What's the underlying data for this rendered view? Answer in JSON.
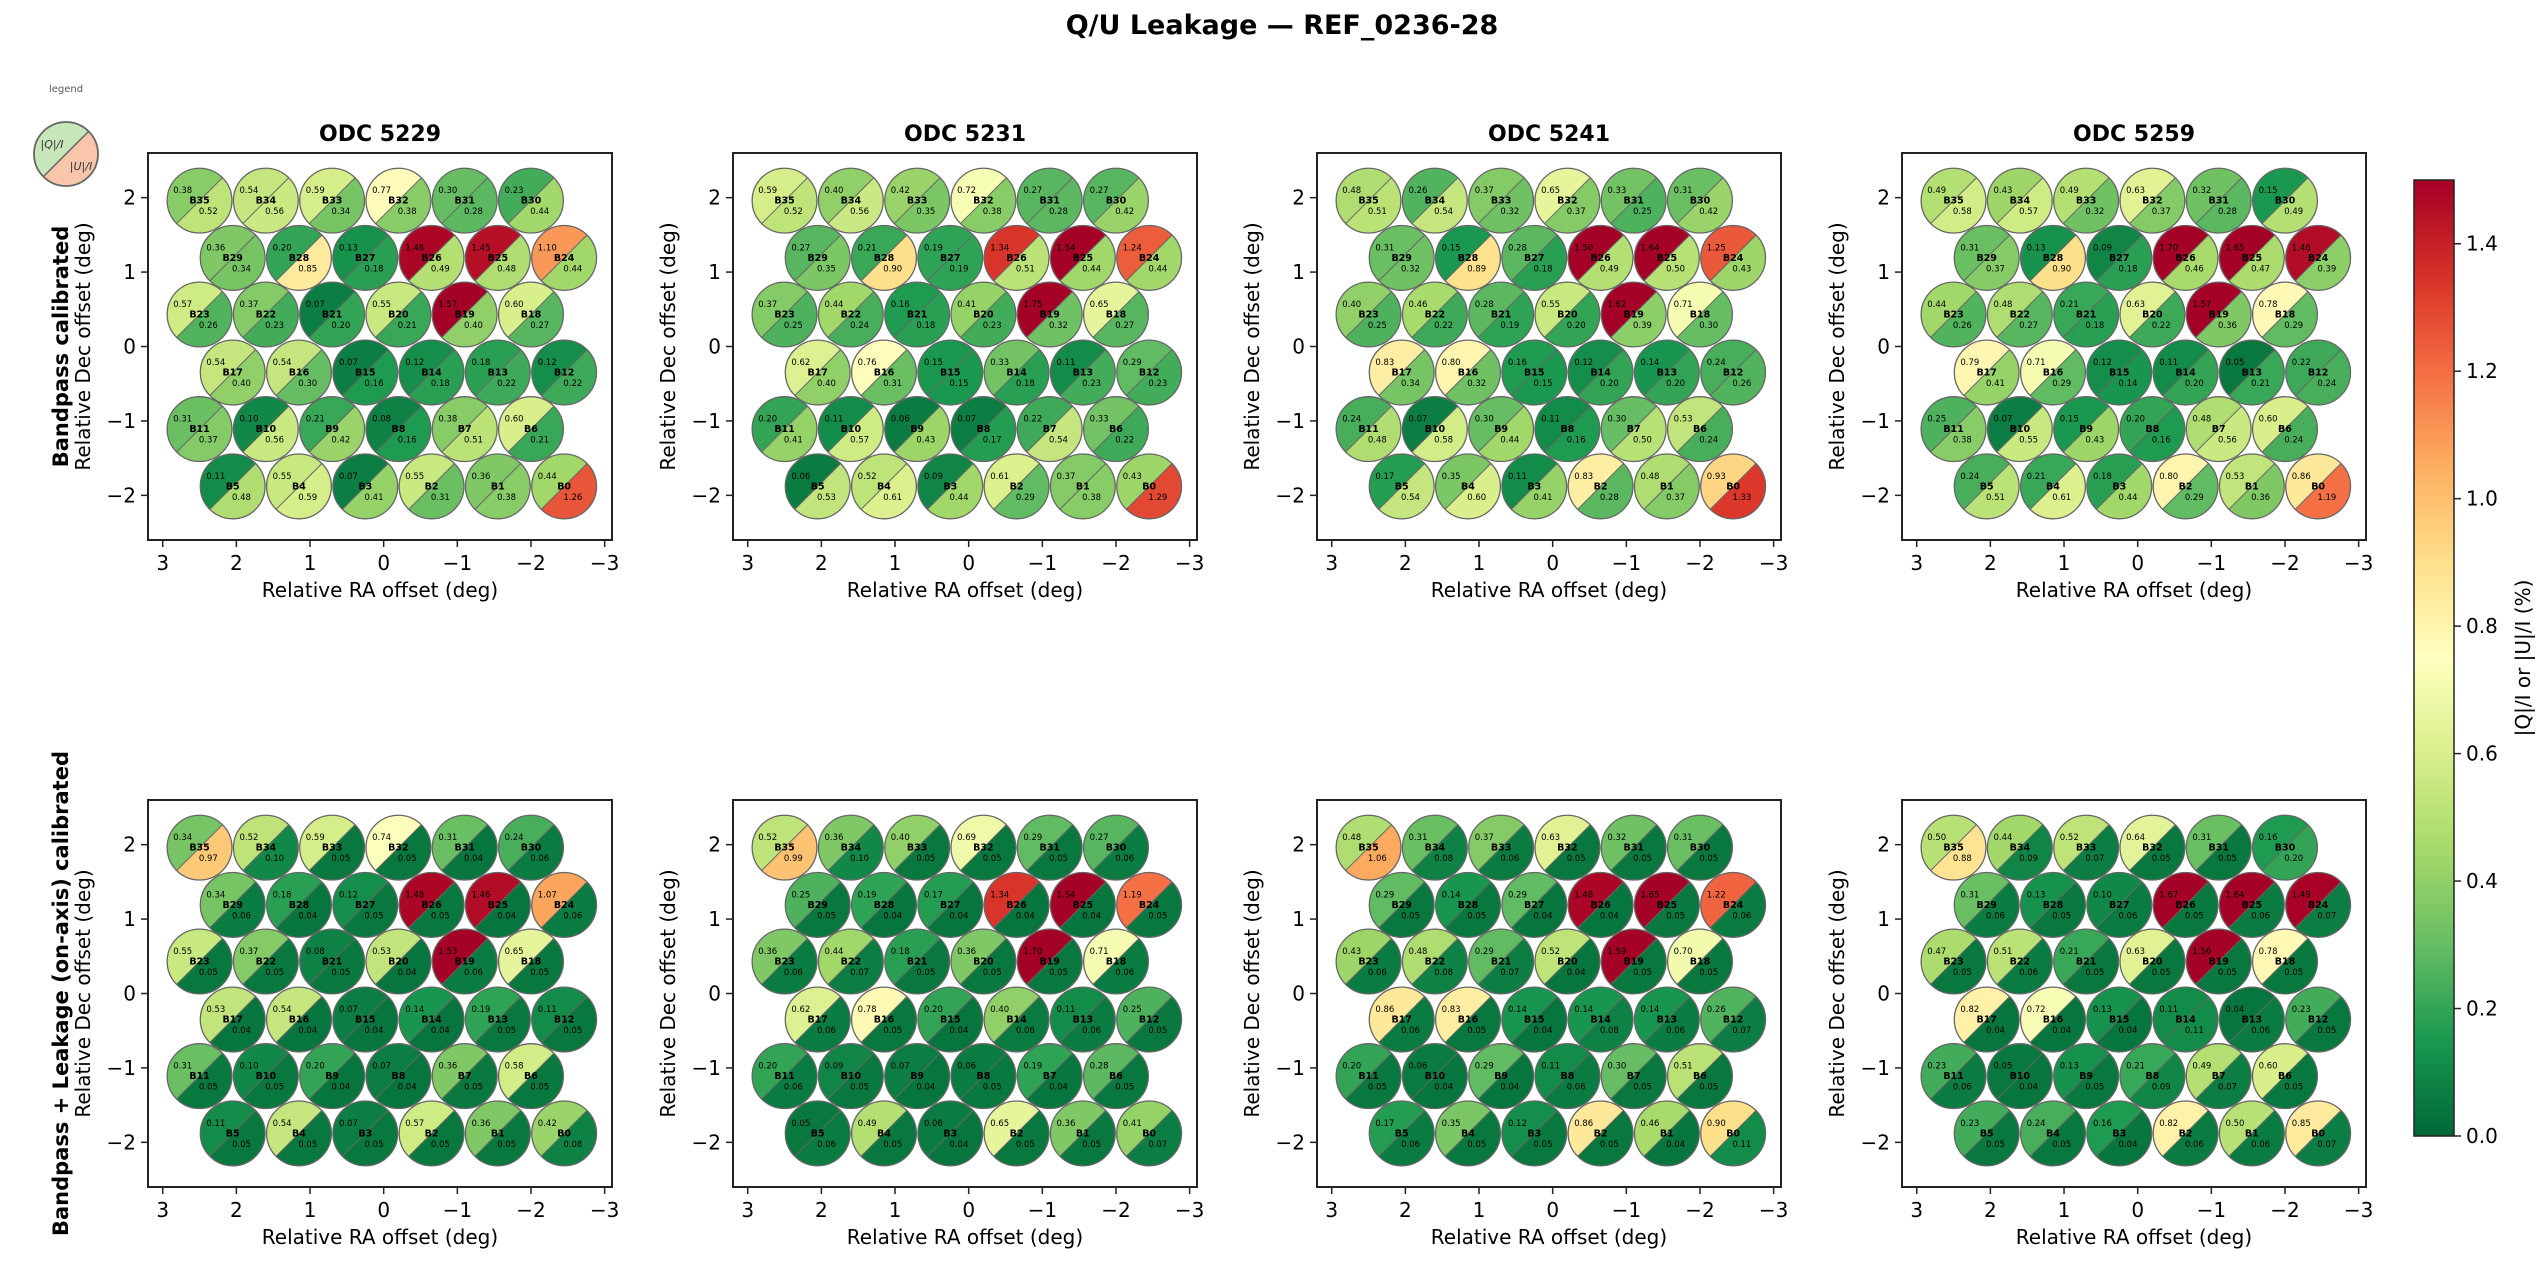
{
  "chart_data": {
    "type": "heatmap",
    "subtype": "split-circle beam map",
    "title": "Q/U Leakage — REF_0236-28",
    "legend": {
      "label": "legend",
      "upper_left": "|Q|/I",
      "lower_right": "|U|/I",
      "placement": "top-left"
    },
    "colorbar": {
      "label": "|Q|/I  or  |U|/I  (%)",
      "range": [
        0,
        1.5
      ],
      "ticks": [
        "0.0",
        "0.2",
        "0.4",
        "0.6",
        "0.8",
        "1.0",
        "1.2",
        "1.4"
      ],
      "colormap": "RdYlGn_r",
      "placement": "right"
    },
    "xlabel": "Relative RA offset (deg)",
    "ylabel": "Relative Dec offset (deg)",
    "xlim": [
      3.2,
      -3.1
    ],
    "ylim": [
      -2.6,
      2.6
    ],
    "xticks": [
      "3",
      "2",
      "1",
      "0",
      "−1",
      "−2",
      "−3"
    ],
    "yticks": [
      "2",
      "1",
      "0",
      "−1",
      "−2"
    ],
    "column_titles": [
      "ODC 5229",
      "ODC 5231",
      "ODC 5241",
      "ODC 5259"
    ],
    "row_titles": [
      "Bandpass calibrated",
      "Bandpass + Leakage (on-axis) calibrated"
    ],
    "beam_layout": [
      [
        "B35",
        "B34",
        "B33",
        "B32",
        "B31",
        "B30"
      ],
      [
        "B29",
        "B28",
        "B27",
        "B26",
        "B25",
        "B24"
      ],
      [
        "B23",
        "B22",
        "B21",
        "B20",
        "B19",
        "B18"
      ],
      [
        "B17",
        "B16",
        "B15",
        "B14",
        "B13",
        "B12"
      ],
      [
        "B11",
        "B10",
        "B9",
        "B8",
        "B7",
        "B6"
      ],
      [
        "B5",
        "B4",
        "B3",
        "B2",
        "B1",
        "B0"
      ]
    ],
    "panels": [
      {
        "row": 0,
        "col": 0,
        "q": [
          [
            0.38,
            0.54,
            0.59,
            0.77,
            0.3,
            0.23
          ],
          [
            0.36,
            0.2,
            0.13,
            1.48,
            1.45,
            1.1
          ],
          [
            0.57,
            0.37,
            0.07,
            0.55,
            1.57,
            0.6
          ],
          [
            0.54,
            0.54,
            0.07,
            0.12,
            0.18,
            0.12
          ],
          [
            0.31,
            0.1,
            0.21,
            0.08,
            0.38,
            0.6
          ],
          [
            0.11,
            0.55,
            0.07,
            0.55,
            0.36,
            0.44
          ]
        ],
        "u": [
          [
            0.52,
            0.56,
            0.34,
            0.38,
            0.28,
            0.44
          ],
          [
            0.34,
            0.85,
            0.18,
            0.49,
            0.48,
            0.44
          ],
          [
            0.26,
            0.23,
            0.2,
            0.21,
            0.4,
            0.27
          ],
          [
            0.4,
            0.3,
            0.16,
            0.18,
            0.22,
            0.22
          ],
          [
            0.37,
            0.56,
            0.42,
            0.16,
            0.51,
            0.21
          ],
          [
            0.48,
            0.59,
            0.41,
            0.31,
            0.38,
            1.26
          ]
        ]
      },
      {
        "row": 0,
        "col": 1,
        "q": [
          [
            0.59,
            0.4,
            0.42,
            0.72,
            0.27,
            0.27
          ],
          [
            0.27,
            0.21,
            0.19,
            1.34,
            1.54,
            1.24
          ],
          [
            0.37,
            0.44,
            0.16,
            0.41,
            1.75,
            0.65
          ],
          [
            0.62,
            0.76,
            0.15,
            0.33,
            0.11,
            0.29
          ],
          [
            0.2,
            0.11,
            0.06,
            0.07,
            0.22,
            0.33
          ],
          [
            0.06,
            0.52,
            0.09,
            0.61,
            0.37,
            0.43
          ]
        ],
        "u": [
          [
            0.52,
            0.56,
            0.35,
            0.38,
            0.28,
            0.42
          ],
          [
            0.35,
            0.9,
            0.19,
            0.51,
            0.44,
            0.44
          ],
          [
            0.25,
            0.24,
            0.18,
            0.23,
            0.32,
            0.27
          ],
          [
            0.4,
            0.31,
            0.15,
            0.18,
            0.23,
            0.23
          ],
          [
            0.41,
            0.57,
            0.43,
            0.17,
            0.54,
            0.22
          ],
          [
            0.53,
            0.61,
            0.44,
            0.29,
            0.38,
            1.29
          ]
        ]
      },
      {
        "row": 0,
        "col": 2,
        "q": [
          [
            0.48,
            0.26,
            0.37,
            0.65,
            0.33,
            0.31
          ],
          [
            0.31,
            0.15,
            0.28,
            1.5,
            1.64,
            1.25
          ],
          [
            0.4,
            0.46,
            0.28,
            0.55,
            1.62,
            0.71
          ],
          [
            0.83,
            0.8,
            0.16,
            0.12,
            0.14,
            0.24
          ],
          [
            0.24,
            0.07,
            0.3,
            0.11,
            0.3,
            0.53
          ],
          [
            0.17,
            0.35,
            0.11,
            0.83,
            0.48,
            0.93
          ]
        ],
        "u": [
          [
            0.51,
            0.54,
            0.32,
            0.37,
            0.25,
            0.42
          ],
          [
            0.32,
            0.89,
            0.18,
            0.49,
            0.5,
            0.43
          ],
          [
            0.25,
            0.22,
            0.19,
            0.2,
            0.39,
            0.3
          ],
          [
            0.34,
            0.32,
            0.15,
            0.2,
            0.2,
            0.26
          ],
          [
            0.48,
            0.58,
            0.44,
            0.16,
            0.5,
            0.24
          ],
          [
            0.54,
            0.6,
            0.41,
            0.28,
            0.37,
            1.33
          ]
        ]
      },
      {
        "row": 0,
        "col": 3,
        "q": [
          [
            0.49,
            0.43,
            0.49,
            0.63,
            0.32,
            0.15
          ],
          [
            0.31,
            0.13,
            0.09,
            1.7,
            1.65,
            1.46
          ],
          [
            0.44,
            0.48,
            0.21,
            0.63,
            1.57,
            0.78
          ],
          [
            0.79,
            0.71,
            0.12,
            0.11,
            0.05,
            0.22
          ],
          [
            0.25,
            0.07,
            0.15,
            0.2,
            0.48,
            0.6
          ],
          [
            0.24,
            0.21,
            0.18,
            0.8,
            0.53,
            0.86
          ]
        ],
        "u": [
          [
            0.58,
            0.57,
            0.32,
            0.37,
            0.28,
            0.49
          ],
          [
            0.37,
            0.9,
            0.18,
            0.46,
            0.47,
            0.39
          ],
          [
            0.26,
            0.27,
            0.18,
            0.22,
            0.36,
            0.29
          ],
          [
            0.41,
            0.29,
            0.14,
            0.2,
            0.21,
            0.24
          ],
          [
            0.38,
            0.55,
            0.43,
            0.16,
            0.56,
            0.24
          ],
          [
            0.51,
            0.61,
            0.44,
            0.29,
            0.36,
            1.19
          ]
        ]
      },
      {
        "row": 1,
        "col": 0,
        "q": [
          [
            0.34,
            0.52,
            0.59,
            0.74,
            0.31,
            0.24
          ],
          [
            0.34,
            0.18,
            0.12,
            1.48,
            1.46,
            1.07
          ],
          [
            0.55,
            0.37,
            0.08,
            0.53,
            1.53,
            0.65
          ],
          [
            0.53,
            0.54,
            0.07,
            0.14,
            0.19,
            0.11
          ],
          [
            0.31,
            0.1,
            0.2,
            0.07,
            0.36,
            0.58
          ],
          [
            0.11,
            0.54,
            0.07,
            0.57,
            0.36,
            0.42
          ]
        ],
        "u": [
          [
            0.97,
            0.1,
            0.05,
            0.05,
            0.04,
            0.06
          ],
          [
            0.06,
            0.04,
            0.05,
            0.05,
            0.04,
            0.06
          ],
          [
            0.05,
            0.05,
            0.05,
            0.04,
            0.06,
            0.05
          ],
          [
            0.04,
            0.04,
            0.04,
            0.04,
            0.05,
            0.05
          ],
          [
            0.05,
            0.05,
            0.04,
            0.04,
            0.05,
            0.05
          ],
          [
            0.05,
            0.05,
            0.05,
            0.05,
            0.05,
            0.08
          ]
        ]
      },
      {
        "row": 1,
        "col": 1,
        "q": [
          [
            0.52,
            0.36,
            0.4,
            0.69,
            0.29,
            0.27
          ],
          [
            0.25,
            0.19,
            0.17,
            1.34,
            1.54,
            1.19
          ],
          [
            0.36,
            0.44,
            0.18,
            0.36,
            1.7,
            0.71
          ],
          [
            0.62,
            0.78,
            0.2,
            0.4,
            0.11,
            0.25
          ],
          [
            0.2,
            0.09,
            0.07,
            0.06,
            0.19,
            0.28
          ],
          [
            0.05,
            0.49,
            0.06,
            0.65,
            0.36,
            0.41
          ]
        ],
        "u": [
          [
            0.99,
            0.1,
            0.05,
            0.05,
            0.05,
            0.06
          ],
          [
            0.05,
            0.04,
            0.04,
            0.04,
            0.04,
            0.05
          ],
          [
            0.06,
            0.07,
            0.05,
            0.05,
            0.05,
            0.06
          ],
          [
            0.06,
            0.05,
            0.04,
            0.06,
            0.06,
            0.05
          ],
          [
            0.06,
            0.05,
            0.04,
            0.05,
            0.04,
            0.05
          ],
          [
            0.06,
            0.05,
            0.04,
            0.05,
            0.05,
            0.07
          ]
        ]
      },
      {
        "row": 1,
        "col": 2,
        "q": [
          [
            0.48,
            0.31,
            0.37,
            0.63,
            0.32,
            0.31
          ],
          [
            0.29,
            0.14,
            0.29,
            1.48,
            1.65,
            1.22
          ],
          [
            0.43,
            0.48,
            0.29,
            0.52,
            1.59,
            0.7
          ],
          [
            0.86,
            0.83,
            0.14,
            0.14,
            0.14,
            0.26
          ],
          [
            0.2,
            0.06,
            0.29,
            0.11,
            0.3,
            0.51
          ],
          [
            0.17,
            0.35,
            0.12,
            0.86,
            0.46,
            0.9
          ]
        ],
        "u": [
          [
            1.06,
            0.08,
            0.06,
            0.05,
            0.05,
            0.05
          ],
          [
            0.05,
            0.05,
            0.04,
            0.04,
            0.05,
            0.06
          ],
          [
            0.06,
            0.08,
            0.07,
            0.04,
            0.05,
            0.05
          ],
          [
            0.06,
            0.05,
            0.04,
            0.08,
            0.06,
            0.07
          ],
          [
            0.05,
            0.04,
            0.04,
            0.06,
            0.05,
            0.05
          ],
          [
            0.06,
            0.05,
            0.05,
            0.05,
            0.04,
            0.11
          ]
        ]
      },
      {
        "row": 1,
        "col": 3,
        "q": [
          [
            0.5,
            0.44,
            0.52,
            0.64,
            0.31,
            0.16
          ],
          [
            0.31,
            0.13,
            0.1,
            1.67,
            1.64,
            1.49
          ],
          [
            0.47,
            0.51,
            0.21,
            0.63,
            1.56,
            0.78
          ],
          [
            0.82,
            0.72,
            0.13,
            0.11,
            0.04,
            0.23
          ],
          [
            0.23,
            0.05,
            0.13,
            0.21,
            0.49,
            0.6
          ],
          [
            0.23,
            0.24,
            0.16,
            0.82,
            0.5,
            0.85
          ]
        ],
        "u": [
          [
            0.88,
            0.09,
            0.07,
            0.05,
            0.05,
            0.2
          ],
          [
            0.06,
            0.05,
            0.06,
            0.05,
            0.06,
            0.07
          ],
          [
            0.05,
            0.06,
            0.05,
            0.05,
            0.05,
            0.05
          ],
          [
            0.04,
            0.04,
            0.04,
            0.11,
            0.06,
            0.05
          ],
          [
            0.06,
            0.04,
            0.05,
            0.09,
            0.07,
            0.05
          ],
          [
            0.05,
            0.05,
            0.04,
            0.06,
            0.06,
            0.07
          ]
        ]
      }
    ]
  }
}
